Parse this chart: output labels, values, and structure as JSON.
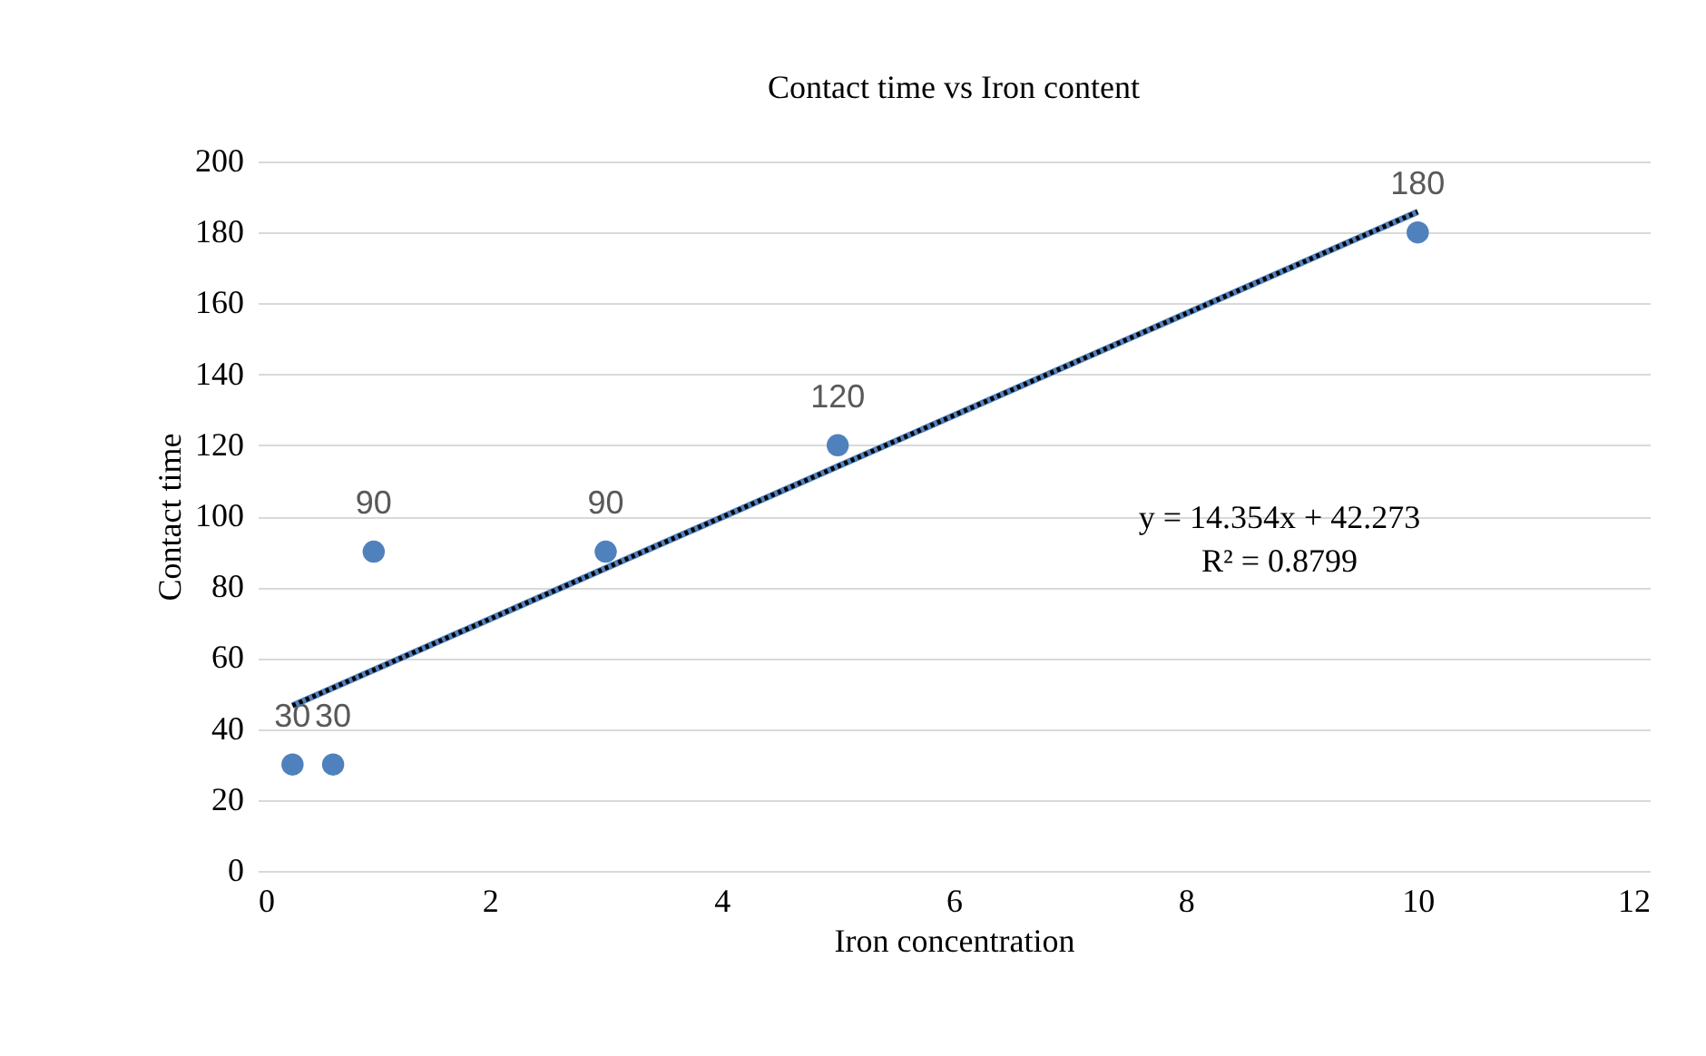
{
  "chart_data": {
    "type": "scatter",
    "title": "Contact time vs Iron content",
    "xlabel": "Iron concentration",
    "ylabel": "Contact time",
    "series": [
      {
        "type": "scatter",
        "color": "#4f81bd",
        "x": [
          0.3,
          0.65,
          1,
          3,
          5,
          10
        ],
        "values": [
          30,
          30,
          90,
          90,
          120,
          180
        ],
        "value_labels": [
          "30",
          "30",
          "90",
          "90",
          "120",
          "180"
        ]
      },
      {
        "type": "line",
        "color": "#000000",
        "line_style": "dotted",
        "marker": "none",
        "x": [
          0.3,
          10
        ],
        "values": [
          46.6,
          185.8
        ]
      }
    ],
    "marker": "circle",
    "legend": false,
    "xlim": [
      0,
      12
    ],
    "xticks": [
      0,
      2,
      4,
      6,
      8,
      10,
      12
    ],
    "ylim": [
      0,
      200
    ],
    "yticks": [
      0,
      20,
      40,
      60,
      80,
      100,
      120,
      140,
      160,
      180,
      200
    ],
    "grid": "y",
    "annotations": [
      "y = 14.354x + 42.273",
      "R² = 0.8799"
    ]
  }
}
